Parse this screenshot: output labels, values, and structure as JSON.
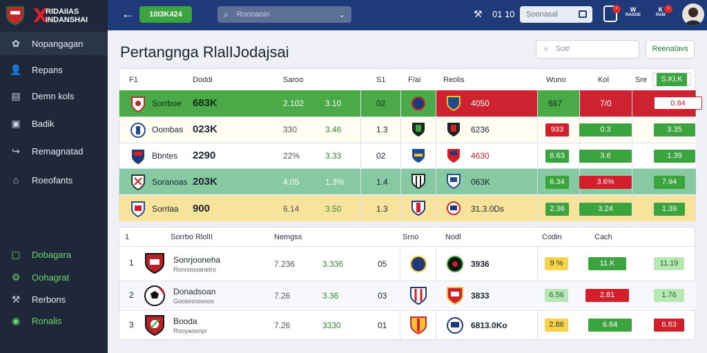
{
  "app": {
    "title": "Pertangnga RlalIJodajsai",
    "logo_line1": "RIDAIIAS",
    "logo_line2": "INDANSHAI",
    "logo_mark": "X"
  },
  "sidebar": {
    "items": [
      {
        "label": "Nopangagan",
        "icon": "globe-icon"
      },
      {
        "label": "Repans",
        "icon": "user-icon"
      },
      {
        "label": "Demn kols",
        "icon": "calendar-icon"
      },
      {
        "label": "Badik",
        "icon": "briefcase-icon"
      },
      {
        "label": "Remagnatad",
        "icon": "share-icon"
      },
      {
        "label": "Roeofants",
        "icon": "home-icon"
      },
      {
        "label": "Dobagara",
        "icon": "document-icon"
      },
      {
        "label": "Oohagrat",
        "icon": "gear-icon"
      },
      {
        "label": "Rerbons",
        "icon": "tool-icon"
      },
      {
        "label": "Ronalis",
        "icon": "coin-icon"
      }
    ]
  },
  "topbar": {
    "back": "←",
    "pill": "10I3K424",
    "search_placeholder": "Roonaoin",
    "clock": "01 10",
    "search2": "Soonasal",
    "mini1": "W",
    "mini1_sub": "RAOGE",
    "mini2": "K",
    "mini2_sub": "RAIII",
    "tool_icon": "tool-icon"
  },
  "toolbar": {
    "search": "Sotr",
    "button": "Reenalavs"
  },
  "table1": {
    "headers": [
      "F1",
      "Doddi",
      "Saroo",
      "S1",
      "F/ai",
      "Reolis",
      "Wuno",
      "Kol",
      "Sre",
      "S.KI.K"
    ],
    "rows": [
      {
        "name": "Sorrboe",
        "score": "683K",
        "v1": "2.102",
        "v2": "3.10",
        "v3": "02",
        "away": "4050",
        "v4": "687",
        "v5": "7/0",
        "tag": "0.84"
      },
      {
        "name": "Oombas",
        "score": "023K",
        "v1": "330",
        "v2": "3.46",
        "v3": "1.3",
        "away": "6236",
        "v4": "933",
        "v5": "0.3",
        "tag": "3.35"
      },
      {
        "name": "Bbntes",
        "score": "2290",
        "v1": "22%",
        "v2": "3.33",
        "v3": "02",
        "away": "4630",
        "v4": "6.63",
        "v5": "3.6",
        "tag": "1.39"
      },
      {
        "name": "Soranoas",
        "score": "203K",
        "v1": "4.05",
        "v2": "1.3%",
        "v3": "1.4",
        "away": "063K",
        "v4": "6.34",
        "v5": "3.6%",
        "tag": "7.94"
      },
      {
        "name": "Sorrlaa",
        "score": "900",
        "v1": "6.14",
        "v2": "3.50",
        "v3": "1.3",
        "away": "31.3.0Ds",
        "v4": "2.36",
        "v5": "3.24",
        "tag": "1.39"
      }
    ]
  },
  "table2": {
    "headers": [
      "1",
      "Sorrbo RlolII",
      "Nemgss",
      "Srno",
      "Nodl",
      "Codin",
      "Cach"
    ],
    "rows": [
      {
        "rank": "1",
        "name": "Sonrjooneha",
        "sub": "Ronnoooanetro",
        "v1": "7.236",
        "v2": "3.336",
        "v3": "05",
        "away": "3936",
        "t1": "9 %",
        "t2": "11.K",
        "t3": "11.19"
      },
      {
        "rank": "2",
        "name": "Donadsoan",
        "sub": "Goolonnoonoo",
        "v1": "7.26",
        "v2": "3.36",
        "v3": "03",
        "away": "3833",
        "t1": "6.56",
        "t2": "2.81",
        "t3": "1.76"
      },
      {
        "rank": "3",
        "name": "Booda",
        "sub": "Rooyaoonpr",
        "v1": "7.26",
        "v2": "3330",
        "v3": "01",
        "away": "6813.0Ko",
        "t1": "2.86",
        "t2": "6.64",
        "t3": "6.83"
      }
    ]
  },
  "colors": {
    "green": "#3ba43f",
    "red": "#d1202b",
    "topbar": "#1e3a78",
    "sidebar": "#1f2838",
    "yellow": "#f8e39d",
    "teal": "#86c9a3"
  }
}
